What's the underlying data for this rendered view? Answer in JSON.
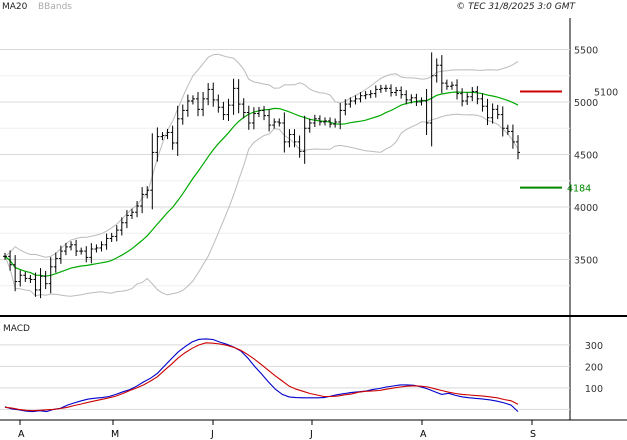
{
  "header": {
    "indicators": [
      "MA20",
      "BBands"
    ],
    "copyright": "© TEC 31/8/2025 3:0 GMT"
  },
  "panels": {
    "macd_label": "MACD"
  },
  "colors": {
    "price_bars": "#000000",
    "ma20": "#00aa00",
    "bbands": "#bbbbbb",
    "resistance": "#cc0000",
    "support": "#008800",
    "macd_line": "#0000cc",
    "signal_line": "#cc0000",
    "grid": "#d9d9d9",
    "axis": "#000000"
  },
  "chart_data": [
    {
      "type": "ohlc",
      "title": "",
      "x_ticks": [
        "A",
        "M",
        "J",
        "J",
        "A",
        "S"
      ],
      "y_ticks": [
        3500,
        4000,
        4500,
        5000,
        5500
      ],
      "ylim": [
        3000,
        5800
      ],
      "grid": true,
      "levels": [
        {
          "label": "5100",
          "value": 5100,
          "color": "#cc0000"
        },
        {
          "label": "4184",
          "value": 4184,
          "color": "#008800"
        }
      ],
      "closes": [
        3530,
        3450,
        3290,
        3350,
        3320,
        3310,
        3210,
        3340,
        3270,
        3430,
        3510,
        3580,
        3620,
        3640,
        3580,
        3580,
        3520,
        3600,
        3610,
        3640,
        3700,
        3720,
        3780,
        3850,
        3920,
        3950,
        4010,
        4120,
        4160,
        4520,
        4670,
        4680,
        4710,
        4610,
        4840,
        4920,
        5010,
        5030,
        4930,
        5030,
        5120,
        5020,
        4950,
        4880,
        4970,
        5130,
        4980,
        4900,
        4800,
        4890,
        4920,
        4870,
        4780,
        4810,
        4800,
        4620,
        4690,
        4620,
        4530,
        4750,
        4800,
        4840,
        4810,
        4820,
        4790,
        4810,
        4920,
        4980,
        5010,
        5030,
        5060,
        5070,
        5080,
        5120,
        5130,
        5130,
        5090,
        5110,
        5070,
        5020,
        5040,
        5000,
        5010,
        4800,
        5250,
        5350,
        5180,
        5150,
        5160,
        5080,
        5010,
        5050,
        5100,
        5030,
        4960,
        4850,
        4930,
        4880,
        4750,
        4720,
        4620,
        4520
      ]
    },
    {
      "type": "line",
      "title": "",
      "y_ticks": [
        100,
        200,
        300
      ],
      "ylim": [
        -40,
        360
      ],
      "series": [
        {
          "name": "",
          "color": "#0000cc",
          "values": [
            12,
            2,
            -2,
            -8,
            -10,
            -6,
            -10,
            0,
            5,
            20,
            30,
            40,
            48,
            52,
            55,
            60,
            70,
            82,
            92,
            108,
            128,
            145,
            168,
            202,
            236,
            268,
            292,
            314,
            326,
            328,
            325,
            313,
            303,
            290,
            272,
            240,
            200,
            165,
            128,
            94,
            70,
            58,
            55,
            54,
            54,
            54,
            55,
            62,
            69,
            74,
            79,
            82,
            85,
            92,
            97,
            104,
            109,
            114,
            114,
            112,
            105,
            95,
            82,
            70,
            75,
            65,
            58,
            54,
            51,
            48,
            44,
            38,
            30,
            20,
            -10
          ]
        },
        {
          "name": "",
          "color": "#cc0000",
          "values": [
            10,
            6,
            0,
            -4,
            -6,
            -4,
            -2,
            0,
            4,
            10,
            18,
            25,
            33,
            40,
            47,
            54,
            62,
            74,
            88,
            100,
            114,
            132,
            152,
            182,
            210,
            240,
            264,
            284,
            300,
            310,
            308,
            304,
            298,
            289,
            275,
            256,
            233,
            208,
            182,
            156,
            132,
            108,
            94,
            84,
            74,
            67,
            60,
            60,
            62,
            68,
            72,
            80,
            84,
            86,
            88,
            94,
            99,
            104,
            108,
            110,
            108,
            104,
            96,
            88,
            80,
            74,
            70,
            67,
            64,
            62,
            58,
            54,
            46,
            40,
            24
          ]
        }
      ]
    }
  ]
}
